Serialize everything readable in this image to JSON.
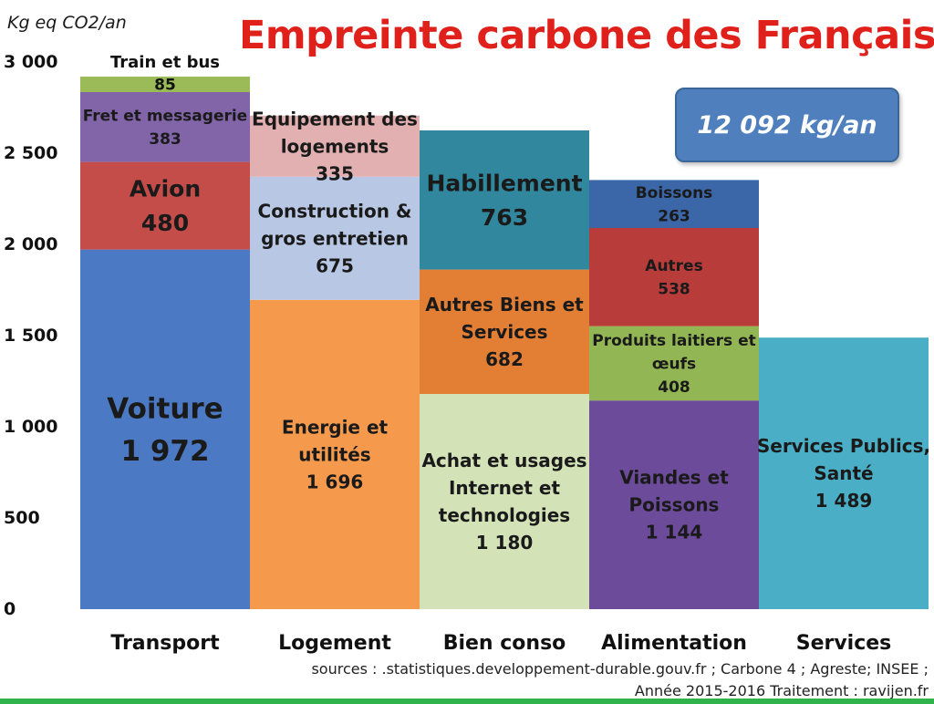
{
  "header": {
    "title": "Empreinte carbone des Français",
    "unit_label": "Kg eq CO2/an",
    "total": "12 092 kg/an"
  },
  "footer": {
    "sources": "sources : .statistiques.developpement-durable.gouv.fr ; Carbone 4 ; Agreste;  INSEE ;",
    "year_and_credit": "Année 2015-2016      Traitement : ravijen.fr"
  },
  "colors": {
    "title": "#e0201b",
    "total_box": "#4f80bd",
    "bottom_bar": "#2fb34a"
  },
  "chart_data": {
    "type": "bar",
    "stacked": true,
    "title": "Empreinte carbone des Français",
    "ylabel": "Kg eq CO2/an",
    "ylim": [
      0,
      3000
    ],
    "yticks": [
      0,
      500,
      1000,
      1500,
      2000,
      2500,
      3000
    ],
    "ytick_labels": [
      "0",
      "500",
      "1 000",
      "1 500",
      "2 000",
      "2 500",
      "3 000"
    ],
    "categories": [
      "Transport",
      "Logement",
      "Bien conso",
      "Alimentation",
      "Services"
    ],
    "stacks": [
      {
        "category": "Transport",
        "segments": [
          {
            "label": "Voiture",
            "value": 1972,
            "value_label": "1 972",
            "color": "#4b79c3",
            "style": "big"
          },
          {
            "label": "Avion",
            "value": 480,
            "value_label": "480",
            "color": "#c44d4a",
            "style": "medium"
          },
          {
            "label": "Fret et messagerie",
            "value": 383,
            "value_label": "383",
            "color": "#8264a8",
            "style": "small"
          },
          {
            "label": "Train et bus",
            "value": 85,
            "value_label": "85",
            "color": "#9bbb59",
            "style": "tiny-above"
          }
        ]
      },
      {
        "category": "Logement",
        "segments": [
          {
            "label": "Energie et utilités",
            "value": 1696,
            "value_label": "1 696",
            "color": "#f59a4d",
            "style": "normal"
          },
          {
            "label": "Construction & gros entretien",
            "value": 675,
            "value_label": "675",
            "color": "#b8c7e3",
            "style": "normal"
          },
          {
            "label": "Equipement des logements",
            "value": 335,
            "value_label": "335",
            "color": "#e2b0b0",
            "style": "normal"
          }
        ]
      },
      {
        "category": "Bien conso",
        "segments": [
          {
            "label": "Achat et usages Internet et technologies",
            "value": 1180,
            "value_label": "1 180",
            "color": "#d4e2b8",
            "style": "normal"
          },
          {
            "label": "Autres Biens et Services",
            "value": 682,
            "value_label": "682",
            "color": "#e37f35",
            "style": "normal"
          },
          {
            "label": "Habillement",
            "value": 763,
            "value_label": "763",
            "color": "#31889e",
            "style": "medium"
          }
        ]
      },
      {
        "category": "Alimentation",
        "segments": [
          {
            "label": "Viandes et Poissons",
            "value": 1144,
            "value_label": "1 144",
            "color": "#6c4b9a",
            "style": "normal"
          },
          {
            "label": "Produits laitiers et œufs",
            "value": 408,
            "value_label": "408",
            "color": "#92b653",
            "style": "small"
          },
          {
            "label": "Autres",
            "value": 538,
            "value_label": "538",
            "color": "#b83c3a",
            "style": "small"
          },
          {
            "label": "Boissons",
            "value": 263,
            "value_label": "263",
            "color": "#3b67a8",
            "style": "small"
          }
        ]
      },
      {
        "category": "Services",
        "segments": [
          {
            "label": "Services Publics, Santé",
            "value": 1489,
            "value_label": "1 489",
            "color": "#4aaec6",
            "style": "normal"
          }
        ]
      }
    ],
    "grid": false,
    "legend": "none"
  }
}
